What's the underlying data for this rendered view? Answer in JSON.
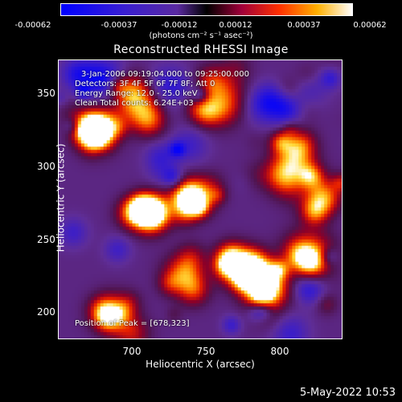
{
  "colorbar": {
    "ticks": [
      "-0.00062",
      "-0.00037",
      "-0.00012",
      "0.00012",
      "0.00037",
      "0.00062"
    ],
    "units": "(photons cm⁻² s⁻¹ asec⁻²)"
  },
  "title": "Reconstructed RHESSI Image",
  "annotations": {
    "time": "3-Jan-2006 09:19:04.000 to 09:25:00.000",
    "detectors": "Detectors: 3F 4F 5F 6F 7F 8F; Att 0",
    "energy": "Energy Range: 12.0 - 25.0 keV",
    "clean": "Clean     Total counts: 6.24E+03",
    "peak": "Position of Peak = [678,323]"
  },
  "chart_data": {
    "type": "heatmap",
    "title": "Reconstructed RHESSI Image",
    "xlabel": "Heliocentric X (arcsec)",
    "ylabel": "Heliocentric Y (arcsec)",
    "xlim": [
      655,
      842
    ],
    "ylim": [
      180,
      372
    ],
    "xticks": [
      700,
      750,
      800
    ],
    "yticks": [
      200,
      250,
      300,
      350
    ],
    "zlim": [
      -0.00062,
      0.00062
    ],
    "colormap": "blue-purple-red-yellow-white",
    "bright_regions": [
      {
        "x": 678,
        "y": 323,
        "level": 1.0
      },
      {
        "x": 712,
        "y": 268,
        "level": 0.85
      },
      {
        "x": 745,
        "y": 278,
        "level": 0.8
      },
      {
        "x": 770,
        "y": 232,
        "level": 0.95
      },
      {
        "x": 790,
        "y": 218,
        "level": 0.85
      },
      {
        "x": 810,
        "y": 305,
        "level": 0.8
      },
      {
        "x": 830,
        "y": 278,
        "level": 0.75
      },
      {
        "x": 760,
        "y": 350,
        "level": 0.7
      },
      {
        "x": 705,
        "y": 345,
        "level": 0.65
      },
      {
        "x": 690,
        "y": 198,
        "level": 0.7
      },
      {
        "x": 820,
        "y": 240,
        "level": 0.65
      },
      {
        "x": 735,
        "y": 225,
        "level": 0.6
      }
    ]
  },
  "footer": "5-May-2022 10:53"
}
